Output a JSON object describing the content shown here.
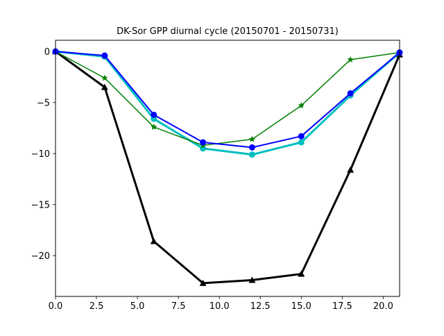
{
  "chart_data": {
    "type": "line",
    "title": "DK-Sor GPP diurnal cycle (20150701 - 20150731)",
    "xlabel": "",
    "ylabel": "",
    "xlim": [
      0,
      21
    ],
    "ylim": [
      -24.0,
      1.1
    ],
    "grid": false,
    "legend": "none",
    "x": [
      0,
      3,
      6,
      9,
      12,
      15,
      18,
      21
    ],
    "x_ticks": [
      0.0,
      2.5,
      5.0,
      7.5,
      10.0,
      12.5,
      15.0,
      17.5,
      20.0
    ],
    "x_tick_labels": [
      "0.0",
      "2.5",
      "5.0",
      "7.5",
      "10.0",
      "12.5",
      "15.0",
      "17.5",
      "20.0"
    ],
    "y_ticks": [
      0,
      -5,
      -10,
      -15,
      -20
    ],
    "y_tick_labels": [
      "0",
      "−5",
      "−10",
      "−15",
      "−20"
    ],
    "series": [
      {
        "color": "#000000",
        "marker": "triangle",
        "line_width": 3,
        "values": [
          0.0,
          -3.5,
          -18.6,
          -22.7,
          -22.4,
          -21.8,
          -11.6,
          -0.3
        ]
      },
      {
        "color": "#00bfbf",
        "marker": "circle",
        "line_width": 3,
        "values": [
          0.0,
          -0.5,
          -6.6,
          -9.5,
          -10.1,
          -8.9,
          -4.3,
          -0.1
        ]
      },
      {
        "color": "#008000",
        "marker": "star",
        "line_width": 1.5,
        "values": [
          0.0,
          -2.6,
          -7.4,
          -9.2,
          -8.6,
          -5.3,
          -0.8,
          -0.1
        ]
      },
      {
        "color": "#0000ff",
        "marker": "circle",
        "line_width": 2,
        "values": [
          0.0,
          -0.4,
          -6.2,
          -8.9,
          -9.4,
          -8.3,
          -4.1,
          -0.1
        ]
      }
    ]
  }
}
